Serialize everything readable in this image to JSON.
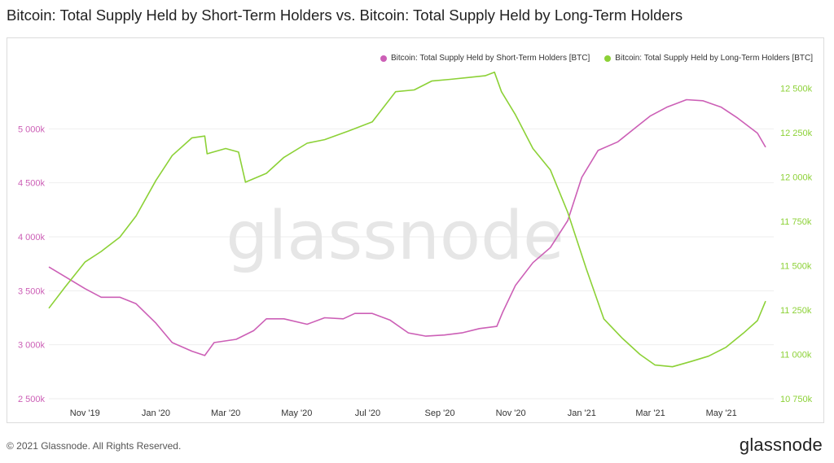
{
  "title": "Bitcoin: Total Supply Held by Short-Term Holders vs. Bitcoin: Total Supply Held by Long-Term Holders",
  "watermark": "glassnode",
  "footer": {
    "copyright": "© 2021 Glassnode. All Rights Reserved.",
    "logo": "glassnode"
  },
  "colors": {
    "sth": "#cc5fb6",
    "lth": "#8cd136",
    "grid": "#eeeeee",
    "watermark": "#e6e6e6"
  },
  "chart_data": {
    "type": "line",
    "x_axis": {
      "start": "2019-10-01",
      "end": "2021-06-15",
      "ticks": [
        {
          "date": "2019-11-01",
          "label": "Nov '19"
        },
        {
          "date": "2020-01-01",
          "label": "Jan '20"
        },
        {
          "date": "2020-03-01",
          "label": "Mar '20"
        },
        {
          "date": "2020-05-01",
          "label": "May '20"
        },
        {
          "date": "2020-07-01",
          "label": "Jul '20"
        },
        {
          "date": "2020-09-01",
          "label": "Sep '20"
        },
        {
          "date": "2020-11-01",
          "label": "Nov '20"
        },
        {
          "date": "2021-01-01",
          "label": "Jan '21"
        },
        {
          "date": "2021-03-01",
          "label": "Mar '21"
        },
        {
          "date": "2021-05-01",
          "label": "May '21"
        }
      ]
    },
    "y_left": {
      "min": 2500000,
      "max": 5500000,
      "ticks": [
        {
          "value": 2500000,
          "label": "2 500k"
        },
        {
          "value": 3000000,
          "label": "3 000k"
        },
        {
          "value": 3500000,
          "label": "3 500k"
        },
        {
          "value": 4000000,
          "label": "4 000k"
        },
        {
          "value": 4500000,
          "label": "4 500k"
        },
        {
          "value": 5000000,
          "label": "5 000k"
        }
      ]
    },
    "y_right": {
      "min": 10750000,
      "max": 12575000,
      "ticks": [
        {
          "value": 10750000,
          "label": "10 750k"
        },
        {
          "value": 11000000,
          "label": "11 000k"
        },
        {
          "value": 11250000,
          "label": "11 250k"
        },
        {
          "value": 11500000,
          "label": "11 500k"
        },
        {
          "value": 11750000,
          "label": "11 750k"
        },
        {
          "value": 12000000,
          "label": "12 000k"
        },
        {
          "value": 12250000,
          "label": "12 250k"
        },
        {
          "value": 12500000,
          "label": "12 500k"
        }
      ]
    },
    "grid": "horizontal",
    "legend_position": "top-right",
    "series": [
      {
        "name": "Bitcoin: Total Supply Held by Short-Term Holders [BTC]",
        "axis": "left",
        "color": "#cc5fb6",
        "points": [
          [
            "2019-10-01",
            3720000
          ],
          [
            "2019-10-15",
            3630000
          ],
          [
            "2019-11-01",
            3520000
          ],
          [
            "2019-11-15",
            3440000
          ],
          [
            "2019-12-01",
            3440000
          ],
          [
            "2019-12-15",
            3380000
          ],
          [
            "2020-01-01",
            3200000
          ],
          [
            "2020-01-15",
            3020000
          ],
          [
            "2020-02-01",
            2940000
          ],
          [
            "2020-02-12",
            2900000
          ],
          [
            "2020-02-20",
            3020000
          ],
          [
            "2020-03-10",
            3050000
          ],
          [
            "2020-03-25",
            3130000
          ],
          [
            "2020-04-05",
            3240000
          ],
          [
            "2020-04-20",
            3240000
          ],
          [
            "2020-05-10",
            3190000
          ],
          [
            "2020-05-25",
            3250000
          ],
          [
            "2020-06-10",
            3240000
          ],
          [
            "2020-06-20",
            3290000
          ],
          [
            "2020-07-05",
            3290000
          ],
          [
            "2020-07-20",
            3230000
          ],
          [
            "2020-08-05",
            3110000
          ],
          [
            "2020-08-20",
            3080000
          ],
          [
            "2020-09-05",
            3090000
          ],
          [
            "2020-09-20",
            3110000
          ],
          [
            "2020-10-05",
            3150000
          ],
          [
            "2020-10-20",
            3170000
          ],
          [
            "2020-10-25",
            3300000
          ],
          [
            "2020-11-05",
            3550000
          ],
          [
            "2020-11-20",
            3760000
          ],
          [
            "2020-12-05",
            3900000
          ],
          [
            "2020-12-20",
            4150000
          ],
          [
            "2021-01-01",
            4550000
          ],
          [
            "2021-01-15",
            4800000
          ],
          [
            "2021-02-01",
            4880000
          ],
          [
            "2021-02-15",
            5000000
          ],
          [
            "2021-03-01",
            5120000
          ],
          [
            "2021-03-15",
            5200000
          ],
          [
            "2021-04-01",
            5270000
          ],
          [
            "2021-04-15",
            5260000
          ],
          [
            "2021-05-01",
            5200000
          ],
          [
            "2021-05-15",
            5100000
          ],
          [
            "2021-06-01",
            4960000
          ],
          [
            "2021-06-08",
            4830000
          ]
        ]
      },
      {
        "name": "Bitcoin: Total Supply Held by Long-Term Holders [BTC]",
        "axis": "right",
        "color": "#8cd136",
        "points": [
          [
            "2019-10-01",
            11260000
          ],
          [
            "2019-10-15",
            11380000
          ],
          [
            "2019-11-01",
            11520000
          ],
          [
            "2019-11-15",
            11580000
          ],
          [
            "2019-12-01",
            11660000
          ],
          [
            "2019-12-15",
            11780000
          ],
          [
            "2020-01-01",
            11980000
          ],
          [
            "2020-01-15",
            12120000
          ],
          [
            "2020-02-01",
            12220000
          ],
          [
            "2020-02-12",
            12230000
          ],
          [
            "2020-02-14",
            12130000
          ],
          [
            "2020-03-01",
            12160000
          ],
          [
            "2020-03-12",
            12140000
          ],
          [
            "2020-03-18",
            11970000
          ],
          [
            "2020-04-05",
            12020000
          ],
          [
            "2020-04-20",
            12110000
          ],
          [
            "2020-05-10",
            12190000
          ],
          [
            "2020-05-25",
            12210000
          ],
          [
            "2020-06-15",
            12260000
          ],
          [
            "2020-07-05",
            12310000
          ],
          [
            "2020-07-25",
            12480000
          ],
          [
            "2020-08-10",
            12490000
          ],
          [
            "2020-08-25",
            12540000
          ],
          [
            "2020-09-10",
            12550000
          ],
          [
            "2020-09-25",
            12560000
          ],
          [
            "2020-10-10",
            12570000
          ],
          [
            "2020-10-18",
            12590000
          ],
          [
            "2020-10-24",
            12480000
          ],
          [
            "2020-11-05",
            12350000
          ],
          [
            "2020-11-20",
            12160000
          ],
          [
            "2020-12-05",
            12040000
          ],
          [
            "2020-12-20",
            11800000
          ],
          [
            "2021-01-05",
            11480000
          ],
          [
            "2021-01-20",
            11200000
          ],
          [
            "2021-02-05",
            11090000
          ],
          [
            "2021-02-20",
            11000000
          ],
          [
            "2021-03-05",
            10940000
          ],
          [
            "2021-03-20",
            10930000
          ],
          [
            "2021-04-05",
            10960000
          ],
          [
            "2021-04-20",
            10990000
          ],
          [
            "2021-05-05",
            11040000
          ],
          [
            "2021-05-20",
            11120000
          ],
          [
            "2021-06-01",
            11190000
          ],
          [
            "2021-06-08",
            11300000
          ]
        ]
      }
    ]
  }
}
